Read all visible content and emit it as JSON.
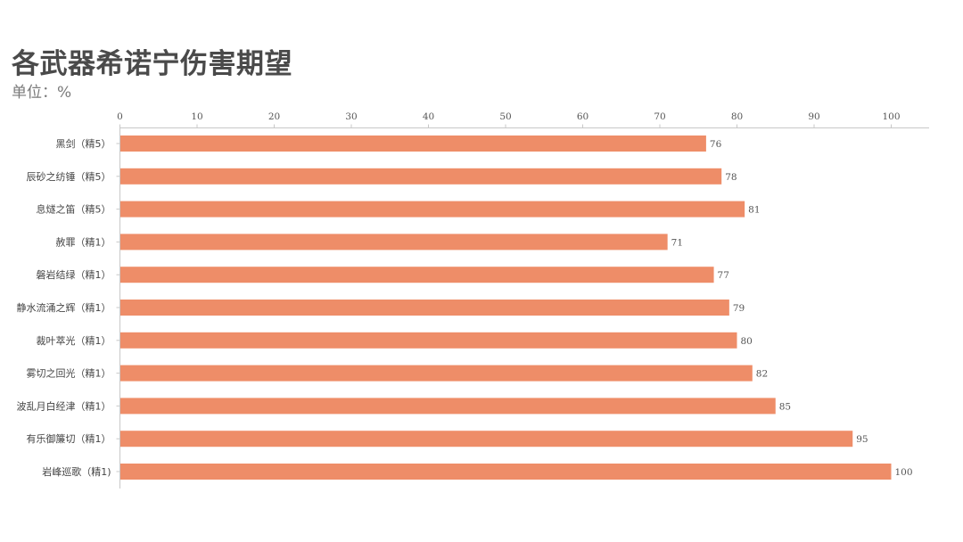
{
  "title": "各武器希诺宁伤害期望",
  "subtitle": "单位：%",
  "colors": {
    "bar": "#ee8d68",
    "axis": "#c8c8c8",
    "title": "#4a4a4a"
  },
  "chart_data": {
    "type": "bar",
    "orientation": "horizontal",
    "title": "各武器希诺宁伤害期望",
    "subtitle": "单位：%",
    "xlim": [
      0,
      100
    ],
    "x_ticks": [
      0,
      10,
      20,
      30,
      40,
      50,
      60,
      70,
      80,
      90,
      100
    ],
    "x_axis_position": "top",
    "grid": false,
    "categories": [
      "黑剑（精5）",
      "辰砂之纺锤（精5）",
      "息燧之笛（精5）",
      "赦罪（精1）",
      "磐岩结绿（精1）",
      "静水流涌之辉（精1）",
      "裁叶萃光（精1）",
      "雾切之回光（精1）",
      "波乱月白经津（精1）",
      "有乐御簾切（精1）",
      "岩峰巡歌（精1)"
    ],
    "values": [
      76,
      78,
      81,
      71,
      77,
      79,
      80,
      82,
      85,
      95,
      100
    ]
  }
}
